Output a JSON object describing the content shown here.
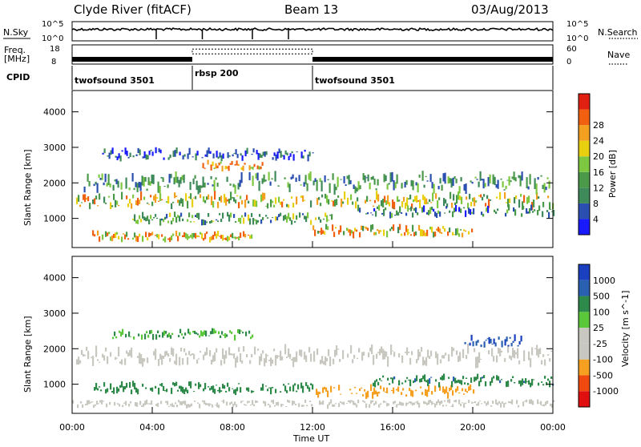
{
  "header": {
    "station": "Clyde River (fitACF)",
    "beam": "Beam 13",
    "date": "03/Aug/2013"
  },
  "colors": {
    "power_scale": [
      "#1a1aff",
      "#2a4fb0",
      "#3f8a5a",
      "#4a9a4a",
      "#7dc840",
      "#e8d010",
      "#f3a020",
      "#f06010",
      "#e02010"
    ],
    "velocity_scale": [
      "#e01010",
      "#f04a10",
      "#f5a020",
      "#c8c8c0",
      "#c8c8c0",
      "#5ac83a",
      "#2e8a4a",
      "#2a60b0",
      "#1a40c0"
    ],
    "sky_trace": "#000000",
    "freq_trace": "#000000"
  },
  "chart_data": [
    {
      "type": "line",
      "panel": "noise",
      "series": [
        {
          "name": "N.Sky"
        },
        {
          "name": "N.Search"
        }
      ],
      "y_left_ticks": [
        "10^5",
        "10^0"
      ],
      "y_right_ticks": [
        "10^5",
        "10^0"
      ],
      "level_fraction": 0.6,
      "markers_hours": [
        4.2,
        6.5,
        9.0,
        10.8
      ]
    },
    {
      "type": "line",
      "panel": "frequency",
      "ylabel_left": [
        "Freq.",
        "[MHz]"
      ],
      "y_left_ticks": [
        "18",
        "8"
      ],
      "y_right_ticks": [
        "60",
        "0"
      ],
      "series": [
        {
          "name": "Nave"
        }
      ],
      "freq_MHz_segments": [
        {
          "start": 0,
          "end": 6.0,
          "value": 10.5
        },
        {
          "start": 6.0,
          "end": 12.0,
          "value": 15.8
        },
        {
          "start": 12.0,
          "end": 24.0,
          "value": 10.5
        }
      ]
    },
    {
      "type": "table",
      "panel": "cpid",
      "label": "CPID",
      "segments": [
        {
          "start": 0,
          "end": 6.0,
          "label": "twofsound 3501"
        },
        {
          "start": 6.0,
          "end": 12.0,
          "label": "rbsp 200"
        },
        {
          "start": 12.0,
          "end": 24.0,
          "label": "twofsound 3501"
        }
      ]
    },
    {
      "type": "heatmap",
      "panel": "power",
      "ylabel": "Slant Range [km]",
      "y_ticks": [
        1000,
        2000,
        3000,
        4000
      ],
      "ylim": [
        180,
        4600
      ],
      "xlim": [
        0,
        24
      ],
      "colorbar_label": "Power [dB]",
      "colorbar_ticks": [
        4,
        8,
        12,
        16,
        20,
        24,
        28
      ],
      "colorbar_range": [
        0,
        32
      ],
      "bands_km": [
        {
          "t0": 0.2,
          "t1": 24,
          "center": 1500,
          "width": 400,
          "value": 20
        },
        {
          "t0": 0.5,
          "t1": 24,
          "center": 2000,
          "width": 500,
          "value": 12
        },
        {
          "t0": 1.0,
          "t1": 9.0,
          "center": 500,
          "width": 250,
          "value": 26
        },
        {
          "t0": 12.0,
          "t1": 20.0,
          "center": 650,
          "width": 300,
          "value": 22
        },
        {
          "t0": 3.0,
          "t1": 13.0,
          "center": 1000,
          "width": 300,
          "value": 14
        },
        {
          "t0": 1.5,
          "t1": 12.0,
          "center": 2800,
          "width": 300,
          "value": 6
        },
        {
          "t0": 6.5,
          "t1": 9.5,
          "center": 2500,
          "width": 250,
          "value": 28
        },
        {
          "t0": 14.0,
          "t1": 24.0,
          "center": 1200,
          "width": 300,
          "value": 10
        }
      ]
    },
    {
      "type": "heatmap",
      "panel": "velocity",
      "ylabel": "Slant Range [km]",
      "y_ticks": [
        1000,
        2000,
        3000,
        4000
      ],
      "ylim": [
        180,
        4600
      ],
      "xlim": [
        0,
        24
      ],
      "colorbar_label": "Velocity [m s^-1]",
      "colorbar_ticks": [
        -1000,
        -500,
        -100,
        -25,
        25,
        100,
        500,
        1000
      ],
      "bands_km": [
        {
          "t0": 0.2,
          "t1": 24,
          "center": 1800,
          "width": 500,
          "value": 0
        },
        {
          "t0": 1.0,
          "t1": 12.0,
          "center": 900,
          "width": 300,
          "value": 150
        },
        {
          "t0": 2.0,
          "t1": 9.0,
          "center": 2400,
          "width": 250,
          "value": 100
        },
        {
          "t0": 12.0,
          "t1": 20.0,
          "center": 800,
          "width": 300,
          "value": -150
        },
        {
          "t0": 15.0,
          "t1": 24.0,
          "center": 1100,
          "width": 300,
          "value": 400
        },
        {
          "t0": 19.5,
          "t1": 22.5,
          "center": 2200,
          "width": 300,
          "value": 900
        },
        {
          "t0": 0.0,
          "t1": 24.0,
          "center": 450,
          "width": 200,
          "value": 0
        }
      ]
    }
  ],
  "xaxis": {
    "label": "Time UT",
    "ticks": [
      "00:00",
      "04:00",
      "08:00",
      "12:00",
      "16:00",
      "20:00",
      "00:00"
    ]
  }
}
